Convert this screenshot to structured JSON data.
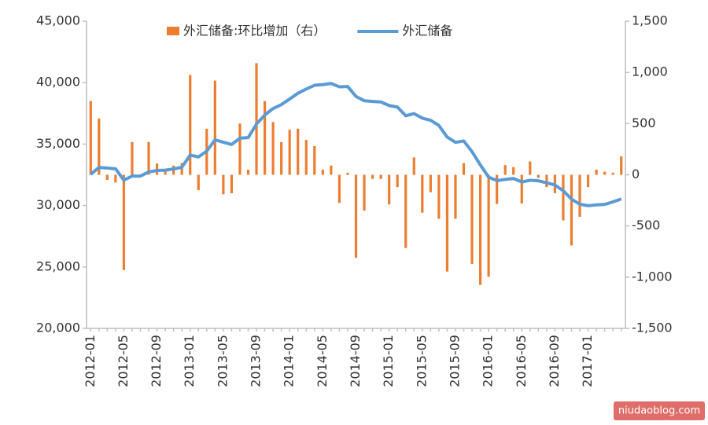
{
  "chart_data": {
    "type": "bar-line",
    "categories": [
      "2012-01",
      null,
      null,
      null,
      "2012-05",
      null,
      null,
      null,
      "2012-09",
      null,
      null,
      null,
      "2013-01",
      null,
      null,
      null,
      "2013-05",
      null,
      null,
      null,
      "2013-09",
      null,
      null,
      null,
      "2014-01",
      null,
      null,
      null,
      "2014-05",
      null,
      null,
      null,
      "2014-09",
      null,
      null,
      null,
      "2015-01",
      null,
      null,
      null,
      "2015-05",
      null,
      null,
      null,
      "2015-09",
      null,
      null,
      null,
      "2016-01",
      null,
      null,
      null,
      "2016-05",
      null,
      null,
      null,
      "2016-09",
      null,
      null,
      null,
      "2017-01",
      null,
      null,
      null,
      null
    ],
    "series": [
      {
        "name": "外汇储备:环比增加（右）",
        "type": "bar",
        "axis": "y2",
        "color": "#ed7d31",
        "values": [
          720,
          550,
          -50,
          -75,
          -930,
          320,
          0,
          320,
          110,
          50,
          90,
          115,
          975,
          -150,
          450,
          920,
          -190,
          -180,
          500,
          50,
          1090,
          720,
          515,
          320,
          440,
          450,
          340,
          280,
          50,
          90,
          -275,
          20,
          -810,
          -350,
          -40,
          -40,
          -290,
          -120,
          -715,
          170,
          -370,
          -170,
          -430,
          -945,
          -430,
          115,
          -870,
          -1075,
          -995,
          -285,
          95,
          75,
          -280,
          130,
          -30,
          -120,
          -180,
          -445,
          -690,
          -410,
          -120,
          50,
          30,
          20,
          180
        ]
      },
      {
        "name": "外汇储备",
        "type": "line",
        "axis": "y",
        "color": "#5b9bd5",
        "values": [
          32536,
          33097,
          33050,
          32989,
          32061,
          32400,
          32400,
          32729,
          32851,
          32874,
          32977,
          33116,
          34100,
          33954,
          34426,
          35345,
          35148,
          34967,
          35478,
          35530,
          36627,
          37367,
          37894,
          38213,
          38666,
          39137,
          39481,
          39788,
          39839,
          39932,
          39663,
          39688,
          38877,
          38529,
          38473,
          38430,
          38134,
          38015,
          37301,
          37481,
          37111,
          36938,
          36513,
          35574,
          35141,
          35255,
          34383,
          33304,
          32309,
          32023,
          32126,
          32197,
          31917,
          32052,
          32011,
          31852,
          31664,
          31207,
          30516,
          30105,
          29982,
          30051,
          30091,
          30295,
          30536
        ]
      }
    ],
    "ylim": [
      20000,
      45000
    ],
    "yticks": [
      {
        "value": 20000,
        "label": "20,000"
      },
      {
        "value": 25000,
        "label": "25,000"
      },
      {
        "value": 30000,
        "label": "30,000"
      },
      {
        "value": 35000,
        "label": "35,000"
      },
      {
        "value": 40000,
        "label": "40,000"
      },
      {
        "value": 45000,
        "label": "45,000"
      }
    ],
    "y2lim": [
      -1500,
      1500
    ],
    "y2ticks": [
      {
        "value": -1500,
        "label": "-1,500"
      },
      {
        "value": -1000,
        "label": "-1,000"
      },
      -500,
      0,
      500,
      {
        "value": 1000,
        "label": "1,000"
      },
      {
        "value": 1500,
        "label": "1,500"
      }
    ],
    "legend": "top",
    "watermark": "niudaoblog.com"
  }
}
